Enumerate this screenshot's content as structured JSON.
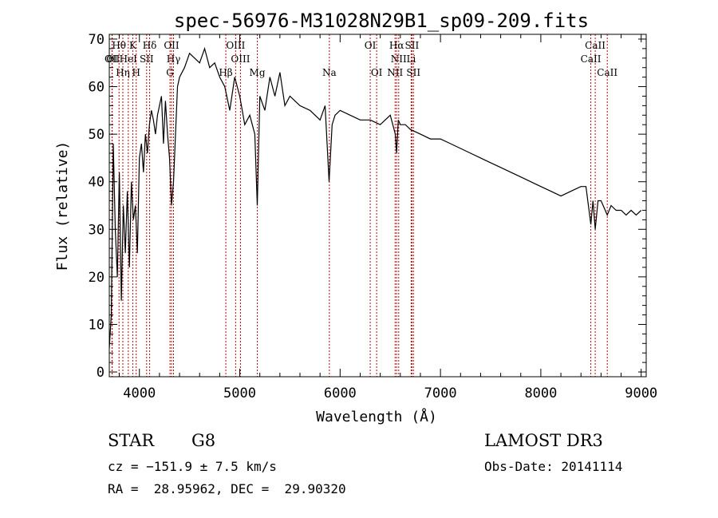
{
  "chart_data": {
    "type": "line",
    "title": "spec-56976-M31028N29B1_sp09-209.fits",
    "xlabel": "Wavelength (Å)",
    "ylabel": "Flux (relative)",
    "xlim": [
      3700,
      9050
    ],
    "ylim": [
      -1,
      71
    ],
    "xticks": [
      4000,
      5000,
      6000,
      7000,
      8000,
      9000
    ],
    "yticks": [
      0,
      10,
      20,
      30,
      40,
      50,
      60,
      70
    ],
    "line_color": "#000000",
    "marker_color": "#cc0000",
    "grid": false,
    "series": [
      {
        "x": [
          3700,
          3720,
          3740,
          3760,
          3780,
          3800,
          3820,
          3840,
          3860,
          3880,
          3900,
          3920,
          3940,
          3960,
          3980,
          4000,
          4020,
          4040,
          4060,
          4080,
          4100,
          4120,
          4140,
          4160,
          4180,
          4200,
          4220,
          4240,
          4260,
          4280,
          4300,
          4320,
          4340,
          4360,
          4380,
          4400,
          4450,
          4500,
          4550,
          4600,
          4650,
          4700,
          4750,
          4800,
          4850,
          4900,
          4950,
          5000,
          5050,
          5100,
          5150,
          5175,
          5200,
          5250,
          5300,
          5350,
          5400,
          5450,
          5500,
          5600,
          5700,
          5800,
          5850,
          5890,
          5920,
          5950,
          6000,
          6100,
          6200,
          6300,
          6400,
          6500,
          6550,
          6563,
          6580,
          6600,
          6650,
          6700,
          6800,
          6900,
          7000,
          7100,
          7200,
          7300,
          7400,
          7500,
          7600,
          7700,
          7800,
          7900,
          8000,
          8100,
          8200,
          8300,
          8400,
          8450,
          8498,
          8520,
          8542,
          8570,
          8600,
          8662,
          8700,
          8750,
          8800,
          8850,
          8900,
          8950,
          9000
        ],
        "y": [
          5,
          12,
          48,
          30,
          20,
          42,
          15,
          35,
          25,
          38,
          22,
          40,
          32,
          35,
          25,
          45,
          48,
          42,
          50,
          46,
          52,
          55,
          53,
          50,
          54,
          56,
          58,
          48,
          57,
          50,
          45,
          35,
          40,
          50,
          60,
          62,
          64,
          67,
          66,
          65,
          68,
          64,
          65,
          62,
          60,
          55,
          62,
          58,
          52,
          54,
          50,
          35,
          58,
          55,
          62,
          58,
          63,
          56,
          58,
          56,
          55,
          53,
          56,
          40,
          52,
          54,
          55,
          54,
          53,
          53,
          52,
          54,
          50,
          46,
          53,
          52,
          52,
          51,
          50,
          49,
          49,
          48,
          47,
          46,
          45,
          44,
          43,
          42,
          41,
          40,
          39,
          38,
          37,
          38,
          39,
          39,
          31,
          36,
          30,
          36,
          36,
          33,
          35,
          34,
          34,
          33,
          34,
          33,
          34
        ]
      }
    ],
    "line_labels": [
      {
        "text": "Hθ",
        "x": 3797
      },
      {
        "text": "K",
        "x": 3934
      },
      {
        "text": "Hδ",
        "x": 4102
      },
      {
        "text": "OII",
        "x": 4320
      },
      {
        "text": "OIII",
        "x": 4959
      },
      {
        "text": "OI",
        "x": 6300
      },
      {
        "text": "Hα",
        "x": 6563
      },
      {
        "text": "SII",
        "x": 6716
      },
      {
        "text": "CaII",
        "x": 8542
      },
      {
        "text": "OI",
        "x": 3727
      },
      {
        "text": "HeI",
        "x": 3889
      },
      {
        "text": "SII",
        "x": 4072
      },
      {
        "text": "Hγ",
        "x": 4340
      },
      {
        "text": "OIII",
        "x": 5007
      },
      {
        "text": "NII",
        "x": 6584
      },
      {
        "text": "Li",
        "x": 6708
      },
      {
        "text": "CaII",
        "x": 8498
      },
      {
        "text": "OII",
        "x": 3729
      },
      {
        "text": "Hη",
        "x": 3835
      },
      {
        "text": "H",
        "x": 3968
      },
      {
        "text": "G",
        "x": 4305
      },
      {
        "text": "Hβ",
        "x": 4861
      },
      {
        "text": "Mg",
        "x": 5175
      },
      {
        "text": "Na",
        "x": 5893
      },
      {
        "text": "OI",
        "x": 6364
      },
      {
        "text": "NII",
        "x": 6548
      },
      {
        "text": "SII",
        "x": 6731
      },
      {
        "text": "CaII",
        "x": 8662
      }
    ]
  },
  "info": {
    "class_label": "STAR",
    "subclass": "G8",
    "survey": "LAMOST DR3",
    "cz": "cz = −151.9 ± 7.5 km/s",
    "obs_date": "Obs-Date: 20141114",
    "coords": "RA =  28.95962, DEC =  29.90320"
  }
}
